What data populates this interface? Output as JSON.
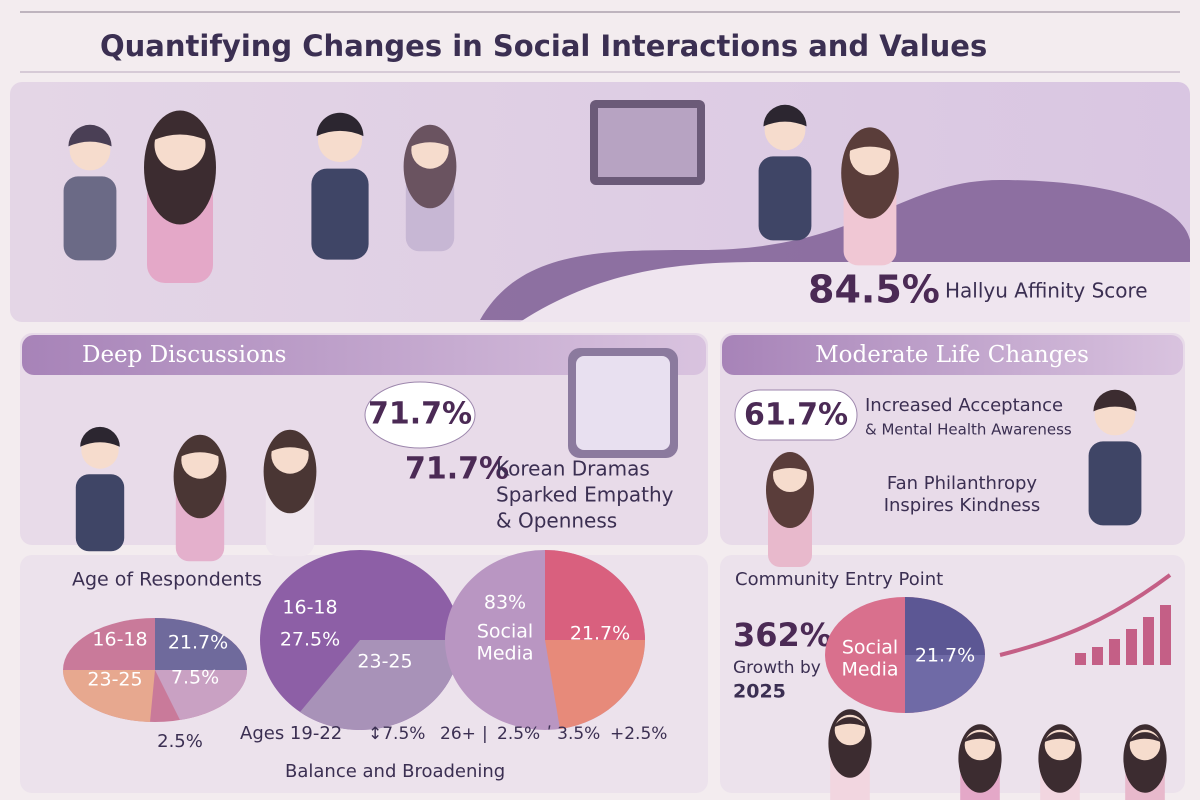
{
  "header": {
    "title": "Quantifying Changes in Social Interactions and Values"
  },
  "hero": {
    "stat": "84.5%",
    "label": "Hallyu Affinity Score"
  },
  "deep_discussions": {
    "heading": "Deep Discussions",
    "bubble": "71.7%",
    "stat": "71.7%",
    "lines": [
      "Korean Dramas",
      "Sparked Empathy",
      "& Openness"
    ]
  },
  "life_changes": {
    "heading": "Moderate Life Changes",
    "stat": "61.7%",
    "lines": [
      "Increased Acceptance",
      "& Mental Health Awareness"
    ],
    "note": [
      "Fan Philanthropy",
      "Inspires Kindness"
    ]
  },
  "age": {
    "heading": "Age of Respondents",
    "pie1": [
      "16-18",
      "21.7%",
      "23-25",
      "7.5%"
    ],
    "below": "2.5%",
    "pie2": [
      "16-18",
      "27.5%",
      "23-25"
    ],
    "pie3": [
      "83%",
      "Social",
      "Media",
      "21.7%"
    ],
    "footer": [
      "Ages 19-22",
      "↕7.5%",
      "26+",
      "|",
      "2.5%",
      "ʹ 3.5%",
      "+2.5%"
    ],
    "caption": "Balance and Broadening"
  },
  "community": {
    "heading": "Community Entry Point",
    "stat": "362%",
    "lines": [
      "Growth by",
      "2025"
    ],
    "pie": [
      "Social",
      "Media",
      "21.7%"
    ]
  }
}
